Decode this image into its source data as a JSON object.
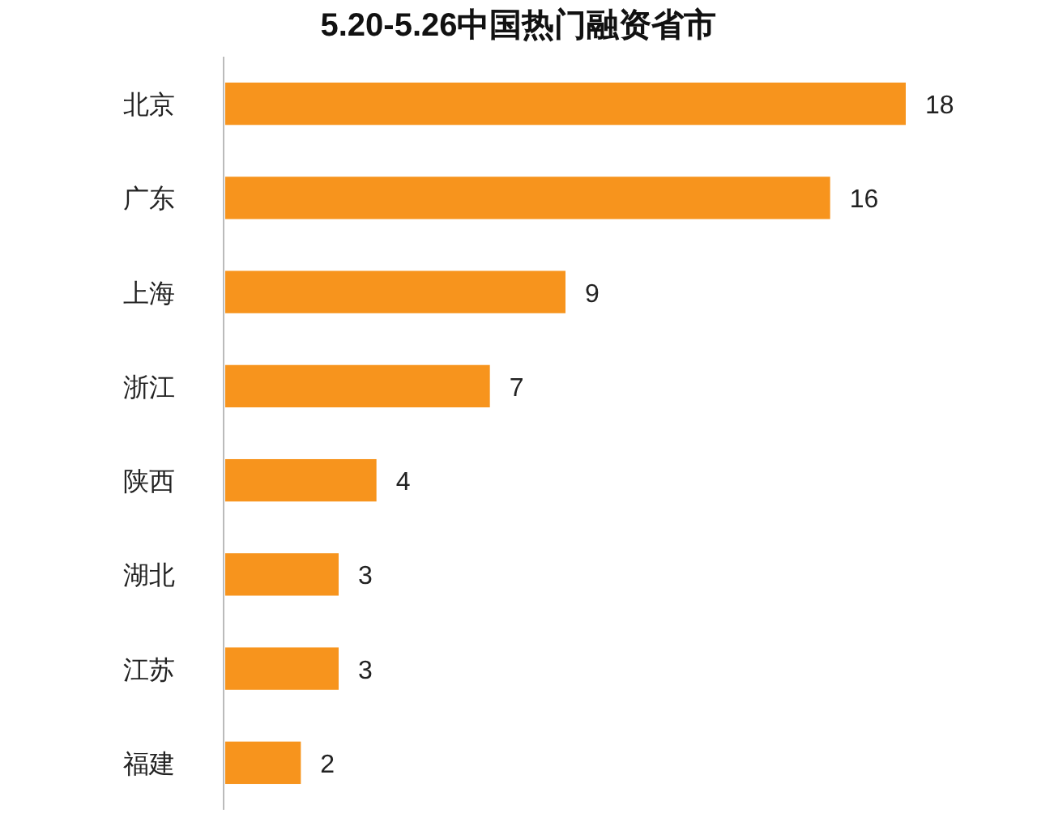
{
  "chart_data": {
    "type": "bar",
    "orientation": "horizontal",
    "title": "5.20-5.26中国热门融资省市",
    "categories": [
      "北京",
      "广东",
      "上海",
      "浙江",
      "陕西",
      "湖北",
      "江苏",
      "福建"
    ],
    "values": [
      18,
      16,
      9,
      7,
      4,
      3,
      3,
      2
    ],
    "color": "#f7941d",
    "data_labels": true
  }
}
